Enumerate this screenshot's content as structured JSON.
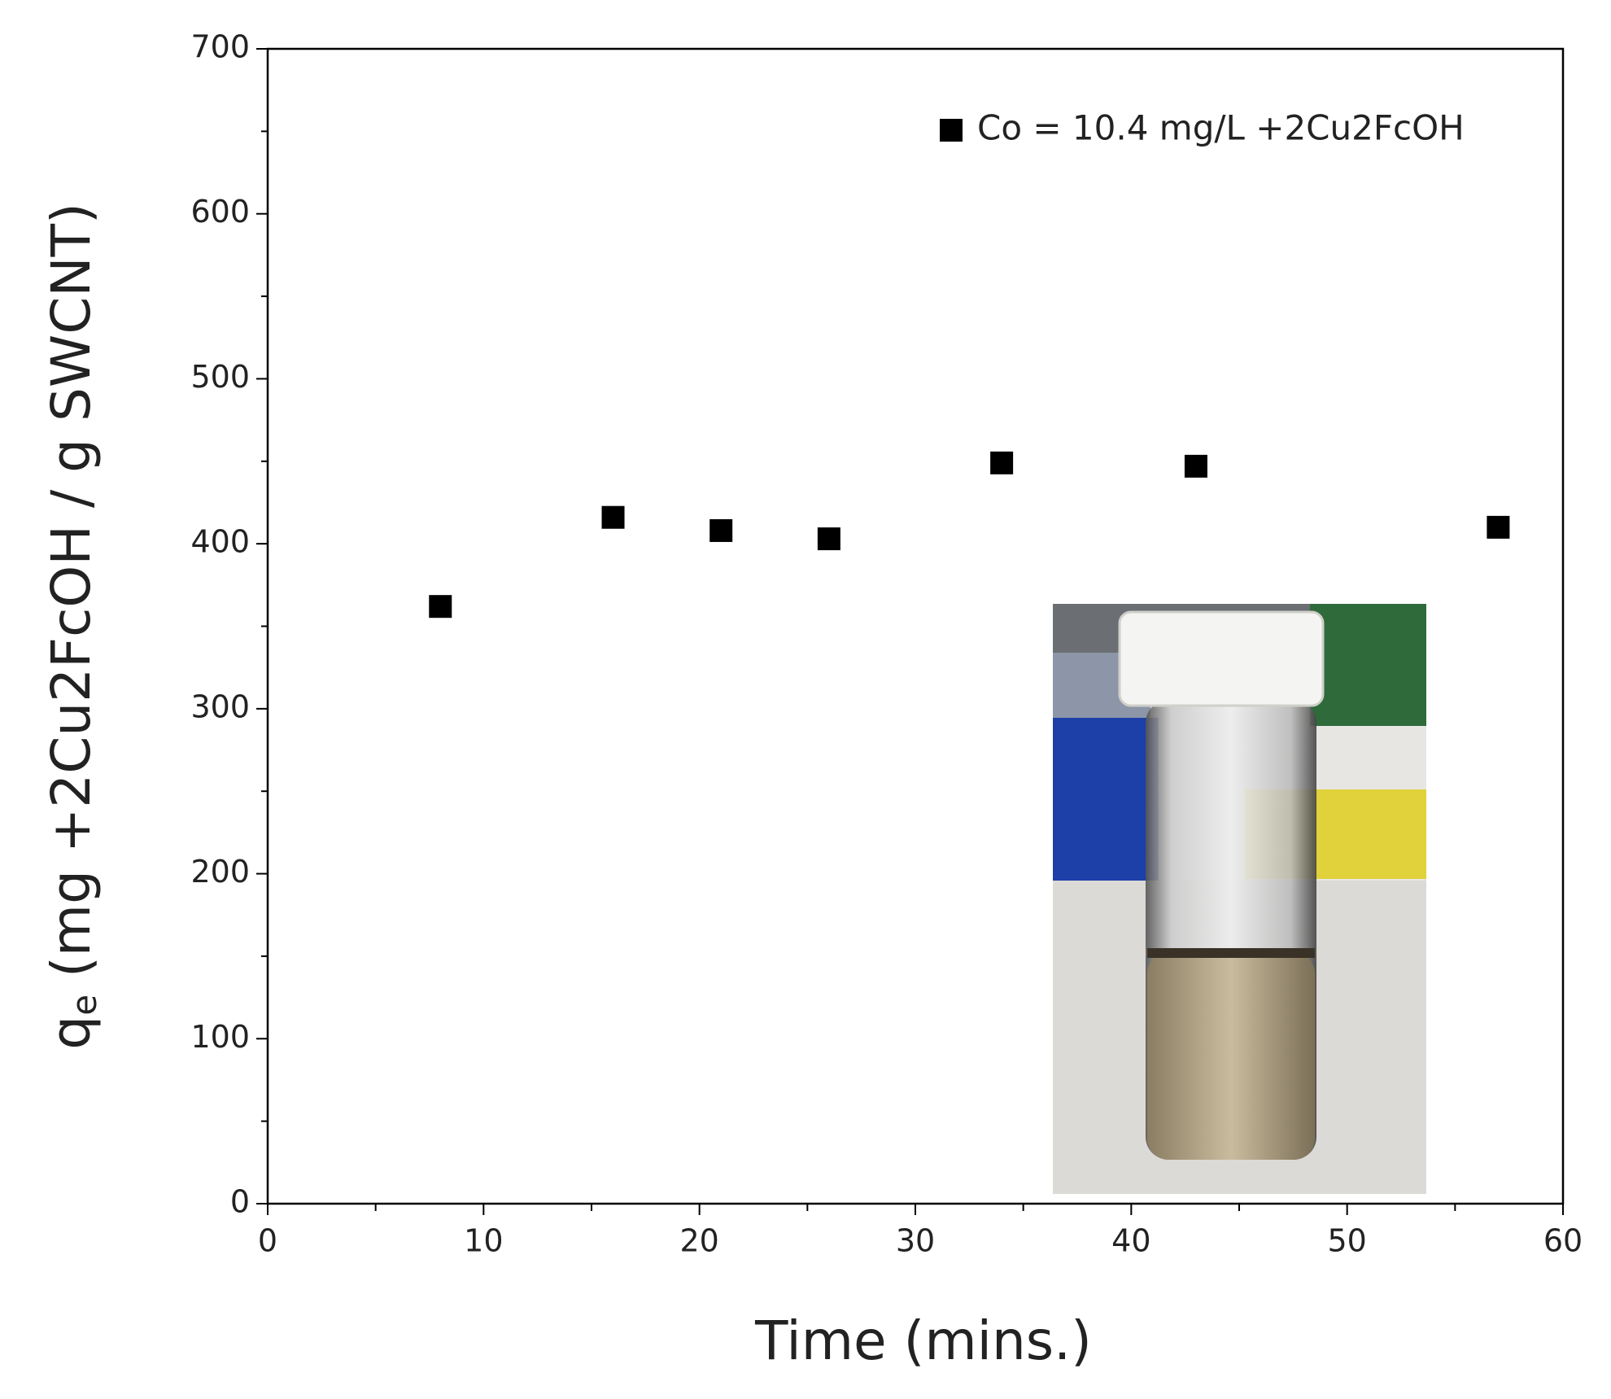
{
  "chart_data": {
    "type": "scatter",
    "x_label": "Time (mins.)",
    "y_label": {
      "main": "q",
      "sub": "e",
      "rest": " (mg +2Cu2FcOH / g SWCNT)"
    },
    "series": [
      {
        "name": "Co = 10.4 mg/L +2Cu2FcOH",
        "color": "#000000",
        "marker": "square",
        "x": [
          8,
          16,
          21,
          26,
          34,
          43,
          57
        ],
        "values": [
          362,
          416,
          408,
          403,
          449,
          447,
          410
        ]
      }
    ],
    "xlim": [
      0,
      60
    ],
    "xticks": [
      0,
      10,
      20,
      30,
      40,
      50,
      60
    ],
    "x_minor_ticks": [
      5,
      15,
      25,
      35,
      45,
      55
    ],
    "ylim": [
      0,
      700
    ],
    "yticks": [
      0,
      100,
      200,
      300,
      400,
      500,
      600,
      700
    ],
    "y_minor_ticks": [
      50,
      150,
      250,
      350,
      450,
      550,
      650
    ],
    "grid": false,
    "legend": "upper right"
  }
}
